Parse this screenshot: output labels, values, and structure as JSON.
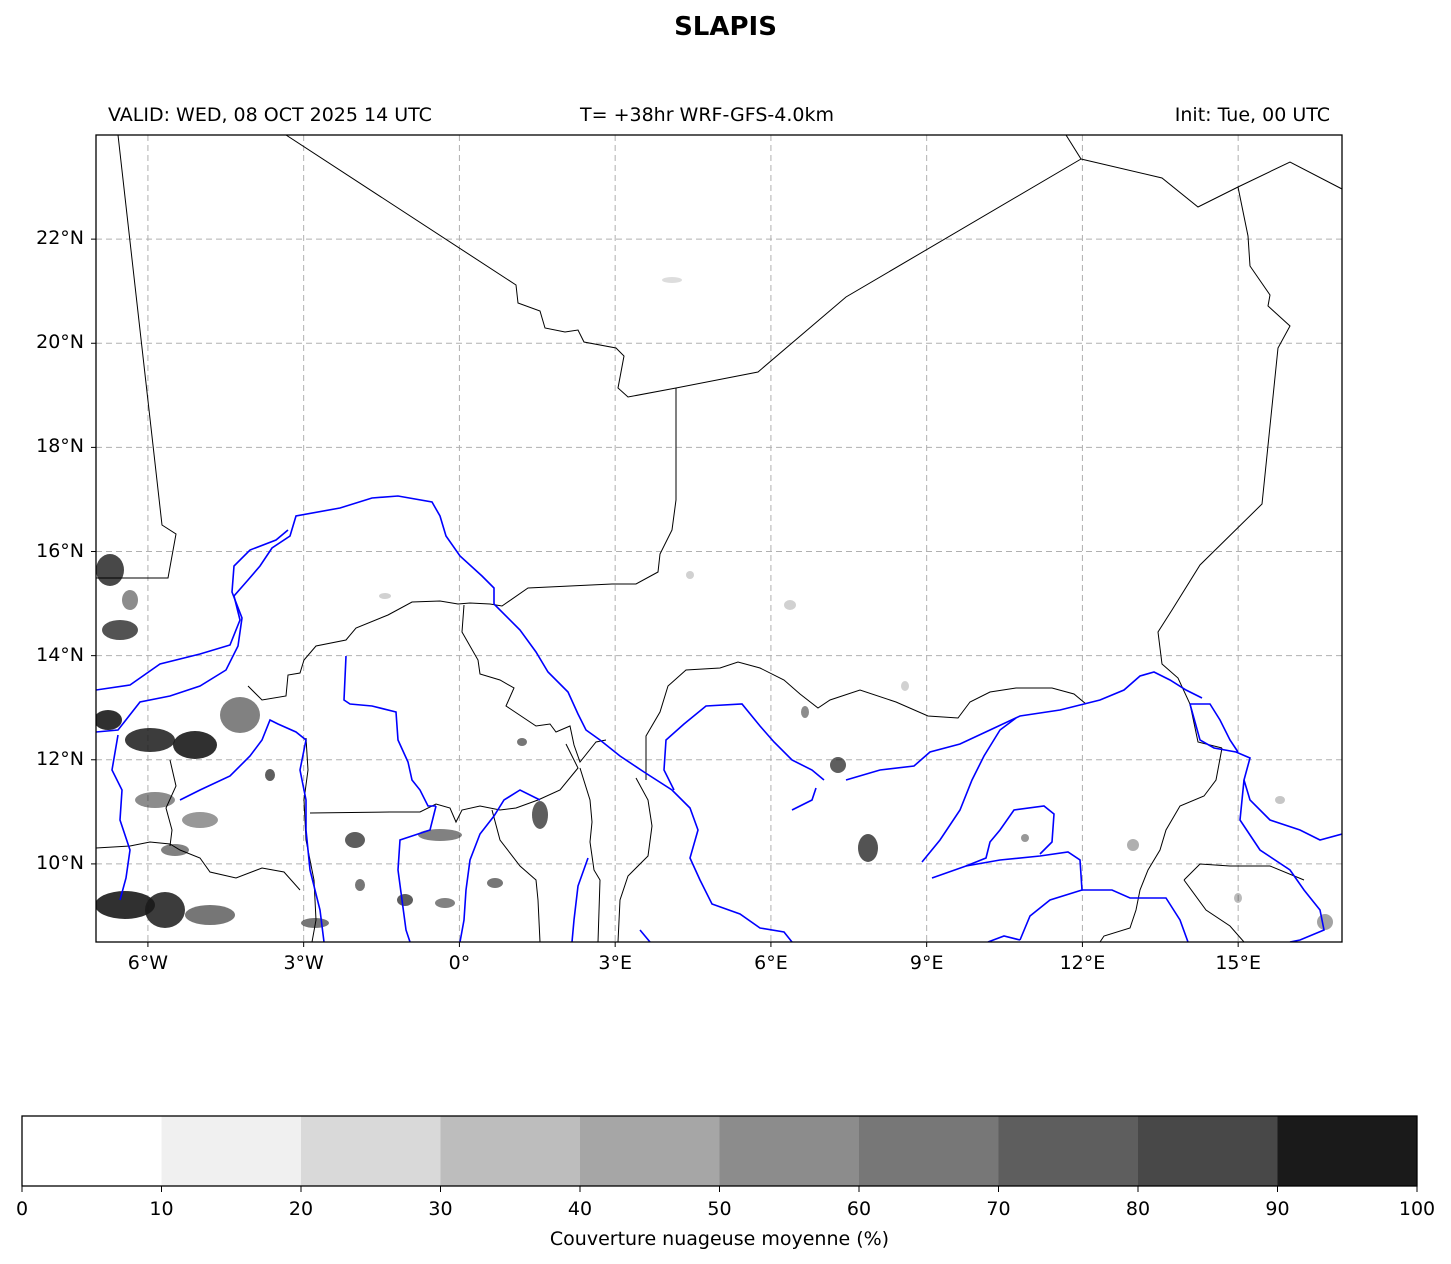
{
  "title": "SLAPIS",
  "header": {
    "valid": "VALID: WED, 08 OCT 2025 14 UTC",
    "forecast": "T= +38hr WRF-GFS-4.0km",
    "init": "Init: Tue, 00 UTC"
  },
  "map": {
    "extent": {
      "lon": [
        -7,
        17
      ],
      "lat": [
        8.5,
        24
      ]
    },
    "lat_ticks": [
      {
        "value": 22,
        "label": "22°N"
      },
      {
        "value": 20,
        "label": "20°N"
      },
      {
        "value": 18,
        "label": "18°N"
      },
      {
        "value": 16,
        "label": "16°N"
      },
      {
        "value": 14,
        "label": "14°N"
      },
      {
        "value": 12,
        "label": "12°N"
      },
      {
        "value": 10,
        "label": "10°N"
      }
    ],
    "lon_ticks": [
      {
        "value": -6,
        "label": "6°W"
      },
      {
        "value": -3,
        "label": "3°W"
      },
      {
        "value": 0,
        "label": "0°"
      },
      {
        "value": 3,
        "label": "3°E"
      },
      {
        "value": 6,
        "label": "6°E"
      },
      {
        "value": 9,
        "label": "9°E"
      },
      {
        "value": 12,
        "label": "12°E"
      },
      {
        "value": 15,
        "label": "15°E"
      }
    ],
    "gridlines": true,
    "colors": {
      "borders": "#000000",
      "rivers": "#0000ff",
      "grid": "#b0b0b0"
    }
  },
  "colorbar": {
    "label": "Couverture nuageuse moyenne (%)",
    "ticks": [
      "0",
      "10",
      "20",
      "30",
      "40",
      "50",
      "60",
      "70",
      "80",
      "90",
      "100"
    ],
    "colors": [
      "#ffffff",
      "#f0f0f0",
      "#d9d9d9",
      "#bdbdbd",
      "#a6a6a6",
      "#8c8c8c",
      "#777777",
      "#5e5e5e",
      "#484848",
      "#1a1a1a"
    ]
  }
}
